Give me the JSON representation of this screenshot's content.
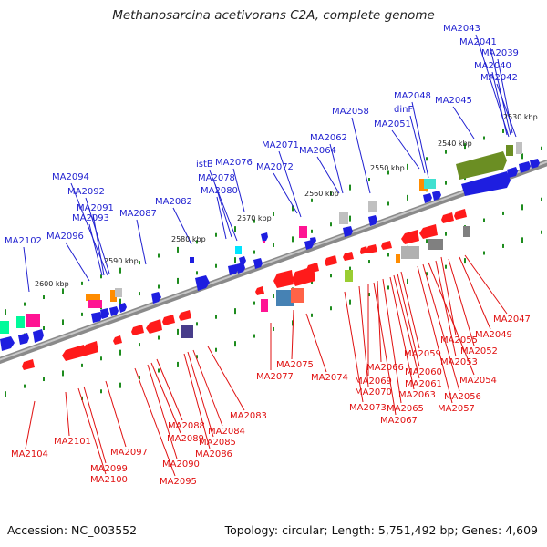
{
  "title": "Methanosarcina acetivorans C2A, complete genome",
  "footer": {
    "accession": "Accession: NC_003552",
    "summary": "Topology: circular; Length: 5,751,492 bp; Genes: 4,609"
  },
  "colors": {
    "top_strand_labels": "#1f1fd0",
    "bottom_strand_labels": "#e01010",
    "backbone": "#777777",
    "tick_marks": "#1e8c1e"
  },
  "scale_marks": [
    "2530 kbp",
    "2540 kbp",
    "2550 kbp",
    "2560 kbp",
    "2570 kbp",
    "2580 kbp",
    "2590 kbp",
    "2600 kbp"
  ],
  "top_labels": [
    "MA2043",
    "MA2041",
    "MA2039",
    "MA2040",
    "MA2042",
    "MA2048",
    "MA2045",
    "dinF",
    "MA2051",
    "MA2058",
    "MA2062",
    "MA2064",
    "MA2071",
    "MA2072",
    "MA2076",
    "istB",
    "MA2078",
    "MA2080",
    "MA2082",
    "MA2087",
    "MA2094",
    "MA2092",
    "MA2091",
    "MA2093",
    "MA2096",
    "MA2102"
  ],
  "bottom_labels": [
    "MA2047",
    "MA2049",
    "MA2055",
    "MA2052",
    "MA2053",
    "MA2054",
    "MA2056",
    "MA2057",
    "MA2059",
    "MA2060",
    "MA2061",
    "MA2063",
    "MA2065",
    "MA2066",
    "MA2067",
    "MA2069",
    "MA2070",
    "MA2073",
    "MA2074",
    "MA2075",
    "MA2077",
    "MA2083",
    "MA2084",
    "MA2085",
    "MA2086",
    "MA2088",
    "MA2089",
    "MA2090",
    "MA2095",
    "MA2097",
    "MA2099",
    "MA2100",
    "MA2101",
    "MA2104"
  ]
}
